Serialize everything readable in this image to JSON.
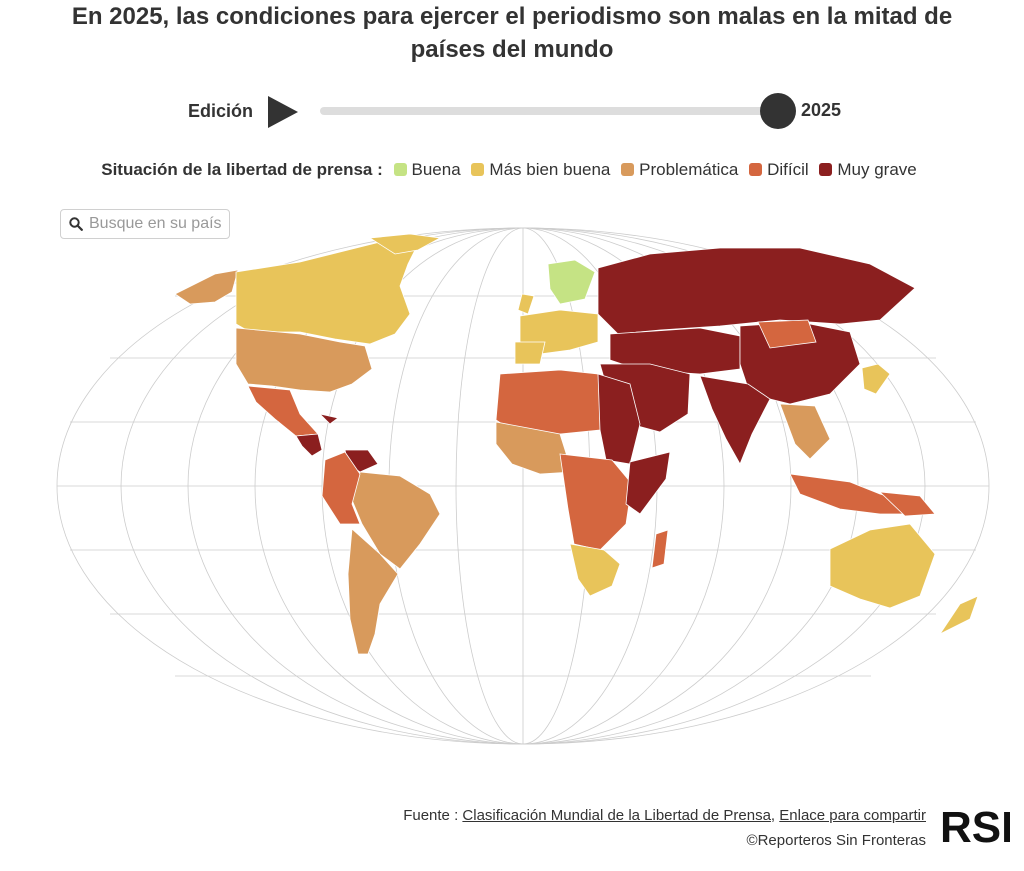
{
  "title": "En 2025, las condiciones para ejercer el periodismo son malas en la mitad de países del mundo",
  "controls": {
    "edition_label": "Edición",
    "year": "2025",
    "slider_value": 1.0
  },
  "legend": {
    "title": "Situación de la libertad de prensa :",
    "categories": [
      {
        "label": "Buena",
        "color": "#c5e384"
      },
      {
        "label": "Más bien buena",
        "color": "#e8c45a"
      },
      {
        "label": "Problemática",
        "color": "#d89a5c"
      },
      {
        "label": "Difícil",
        "color": "#d4663f"
      },
      {
        "label": "Muy grave",
        "color": "#8b1f1f"
      }
    ]
  },
  "search": {
    "placeholder": "Busque en su país"
  },
  "footer": {
    "source_prefix": "Fuente : ",
    "source_link": "Clasificación Mundial de la Libertad de Prensa",
    "separator": ", ",
    "share_link": "Enlace para compartir",
    "copyright": "©Reporteros Sin Fronteras",
    "logo_text": "RSF"
  }
}
